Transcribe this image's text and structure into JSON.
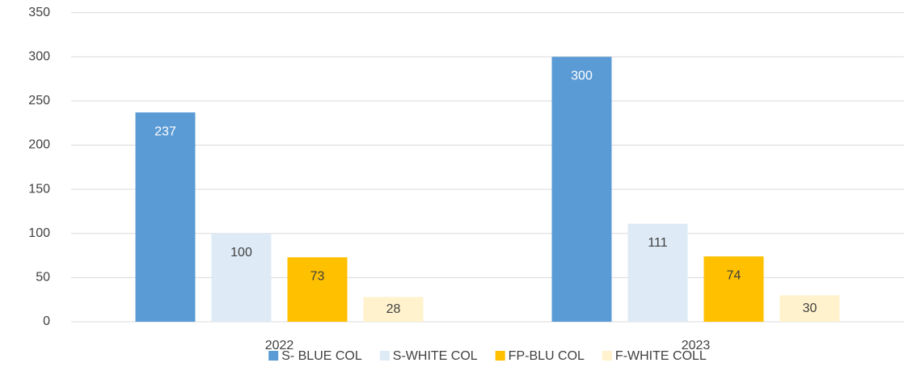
{
  "chart_data": {
    "type": "bar",
    "categories": [
      "2022",
      "2023"
    ],
    "series": [
      {
        "name": "S- BLUE COL",
        "color": "#5b9bd5",
        "values": [
          237,
          300
        ]
      },
      {
        "name": "S-WHITE COL",
        "color": "#deebf7",
        "values": [
          100,
          111
        ]
      },
      {
        "name": "FP-BLU COL",
        "color": "#ffc000",
        "values": [
          73,
          74
        ]
      },
      {
        "name": "F-WHITE COLL",
        "color": "#fff2cc",
        "values": [
          28,
          30
        ]
      }
    ],
    "ylim": [
      0,
      350
    ],
    "yticks": [
      0,
      50,
      100,
      150,
      200,
      250,
      300,
      350
    ],
    "grid": true,
    "legend": "bottom"
  }
}
